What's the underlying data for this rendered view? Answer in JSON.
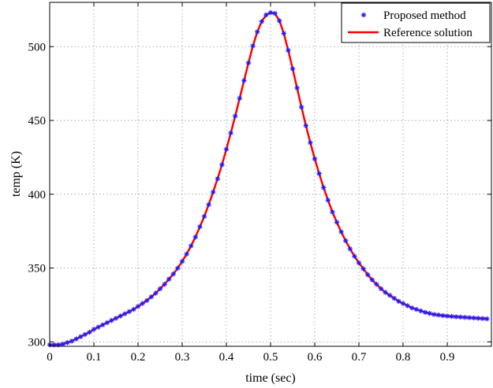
{
  "chart_data": {
    "type": "line",
    "xlabel": "time (sec)",
    "ylabel": "temp (K)",
    "xlim": [
      0,
      1
    ],
    "ylim": [
      297,
      530
    ],
    "x_ticks": [
      0,
      0.1,
      0.2,
      0.3,
      0.4,
      0.5,
      0.6,
      0.7,
      0.8,
      0.9
    ],
    "x_tick_labels": [
      "0",
      "0.1",
      "0.2",
      "0.3",
      "0.4",
      "0.5",
      "0.6",
      "0.7",
      "0.8",
      "0.9"
    ],
    "y_ticks": [
      300,
      350,
      400,
      450,
      500
    ],
    "y_tick_labels": [
      "300",
      "350",
      "400",
      "450",
      "500"
    ],
    "grid": true,
    "legend_position": "top-right",
    "series": [
      {
        "name": "Proposed method",
        "style": "markers",
        "marker": "asterisk",
        "color": "#1a1aff",
        "x": [
          0.0,
          0.01,
          0.02,
          0.03,
          0.04,
          0.05,
          0.06,
          0.07,
          0.08,
          0.09,
          0.1,
          0.11,
          0.12,
          0.13,
          0.14,
          0.15,
          0.16,
          0.17,
          0.18,
          0.19,
          0.2,
          0.21,
          0.22,
          0.23,
          0.24,
          0.25,
          0.26,
          0.27,
          0.28,
          0.29,
          0.3,
          0.31,
          0.32,
          0.33,
          0.34,
          0.35,
          0.36,
          0.37,
          0.38,
          0.39,
          0.4,
          0.41,
          0.42,
          0.43,
          0.44,
          0.45,
          0.46,
          0.47,
          0.48,
          0.49,
          0.5,
          0.51,
          0.52,
          0.53,
          0.54,
          0.55,
          0.56,
          0.57,
          0.58,
          0.59,
          0.6,
          0.61,
          0.62,
          0.63,
          0.64,
          0.65,
          0.66,
          0.67,
          0.68,
          0.69,
          0.7,
          0.71,
          0.72,
          0.73,
          0.74,
          0.75,
          0.76,
          0.77,
          0.78,
          0.79,
          0.8,
          0.81,
          0.82,
          0.83,
          0.84,
          0.85,
          0.86,
          0.87,
          0.88,
          0.89,
          0.9,
          0.91,
          0.92,
          0.93,
          0.94,
          0.95,
          0.96,
          0.97,
          0.98,
          0.99
        ],
        "y": [
          298,
          298,
          298,
          298.5,
          299.5,
          300.5,
          302,
          303.5,
          305,
          306.5,
          308.5,
          310,
          311.5,
          313,
          314.5,
          316,
          317.5,
          319,
          320.5,
          322,
          324,
          326,
          328,
          330.5,
          333,
          336,
          339,
          342.5,
          346,
          350,
          354.5,
          359.5,
          365,
          371,
          378,
          385,
          393,
          401.5,
          410.5,
          420,
          430.5,
          441.5,
          453,
          465,
          477,
          489,
          500.5,
          510,
          517,
          521.5,
          523,
          522.5,
          517.5,
          509,
          497.5,
          485,
          472,
          459,
          446.5,
          435,
          424,
          414,
          404.5,
          396,
          388,
          381,
          374.5,
          368.5,
          363,
          358,
          353.5,
          349.5,
          345.5,
          342,
          339,
          336,
          333.5,
          331.5,
          329.5,
          327.5,
          326,
          324.5,
          323,
          322,
          321,
          320,
          319.3,
          318.6,
          318.2,
          317.8,
          317.5,
          317.2,
          317,
          316.8,
          316.6,
          316.4,
          316.2,
          316,
          315.8,
          315.6
        ]
      },
      {
        "name": "Reference solution",
        "style": "line",
        "color": "#ff0000",
        "x": [
          0.0,
          0.01,
          0.02,
          0.03,
          0.04,
          0.05,
          0.06,
          0.07,
          0.08,
          0.09,
          0.1,
          0.11,
          0.12,
          0.13,
          0.14,
          0.15,
          0.16,
          0.17,
          0.18,
          0.19,
          0.2,
          0.21,
          0.22,
          0.23,
          0.24,
          0.25,
          0.26,
          0.27,
          0.28,
          0.29,
          0.3,
          0.31,
          0.32,
          0.33,
          0.34,
          0.35,
          0.36,
          0.37,
          0.38,
          0.39,
          0.4,
          0.41,
          0.42,
          0.43,
          0.44,
          0.45,
          0.46,
          0.47,
          0.48,
          0.49,
          0.5,
          0.51,
          0.52,
          0.53,
          0.54,
          0.55,
          0.56,
          0.57,
          0.58,
          0.59,
          0.6,
          0.61,
          0.62,
          0.63,
          0.64,
          0.65,
          0.66,
          0.67,
          0.68,
          0.69,
          0.7,
          0.71,
          0.72,
          0.73,
          0.74,
          0.75,
          0.76,
          0.77,
          0.78,
          0.79,
          0.8,
          0.81,
          0.82,
          0.83,
          0.84,
          0.85,
          0.86,
          0.87,
          0.88,
          0.89,
          0.9,
          0.91,
          0.92,
          0.93,
          0.94,
          0.95,
          0.96,
          0.97,
          0.98,
          0.99
        ],
        "y": [
          298,
          298,
          298,
          298.5,
          299.5,
          300.5,
          302,
          303.5,
          305,
          306.5,
          308.5,
          310,
          311.5,
          313,
          314.5,
          316,
          317.5,
          319,
          320.5,
          322,
          324,
          326,
          328,
          330.5,
          333,
          336,
          339,
          342.5,
          346,
          350,
          354.5,
          359.5,
          365,
          371,
          378,
          385,
          393,
          401.5,
          410.5,
          420,
          430.5,
          441.5,
          453,
          465,
          477,
          489,
          500.5,
          510,
          517,
          521.5,
          523,
          522.5,
          517.5,
          509,
          497.5,
          485,
          472,
          459,
          446.5,
          435,
          424,
          414,
          404.5,
          396,
          388,
          381,
          374.5,
          368.5,
          363,
          358,
          353.5,
          349.5,
          345.5,
          342,
          339,
          336,
          333.5,
          331.5,
          329.5,
          327.5,
          326,
          324.5,
          323,
          322,
          321,
          320,
          319.3,
          318.6,
          318.2,
          317.8,
          317.5,
          317.2,
          317,
          316.8,
          316.6,
          316.4,
          316.2,
          316,
          315.8,
          315.6
        ]
      }
    ]
  }
}
